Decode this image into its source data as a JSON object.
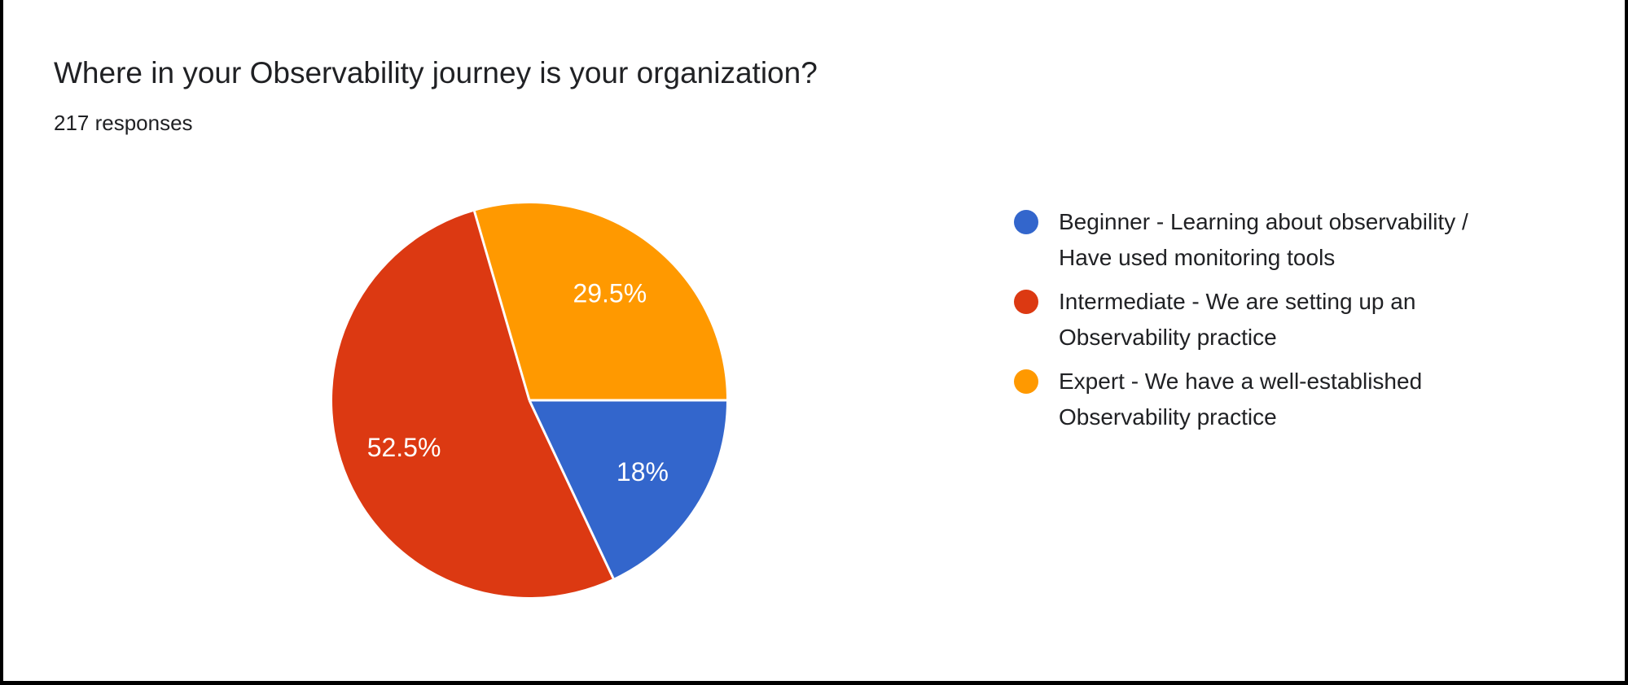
{
  "header": {
    "title": "Where in your Observability journey is your organization?",
    "responses": "217 responses"
  },
  "chart_data": {
    "type": "pie",
    "title": "Where in your Observability journey is your organization?",
    "subtitle": "217 responses",
    "total_responses": 217,
    "start_angle_deg": 90,
    "direction": "clockwise",
    "legend_position": "right",
    "slices": [
      {
        "label": "Beginner - Learning about observability / Have used monitoring tools",
        "label_lines": [
          "Beginner - Learning about observability /",
          "Have used monitoring tools"
        ],
        "pct": 18,
        "pct_label": "18%",
        "color": "#3366CC"
      },
      {
        "label": "Intermediate - We are setting up an Observability practice",
        "label_lines": [
          "Intermediate - We are setting up an",
          "Observability practice"
        ],
        "pct": 52.5,
        "pct_label": "52.5%",
        "color": "#DC3912"
      },
      {
        "label": "Expert - We have a well-established Observability practice",
        "label_lines": [
          "Expert - We have a well-established",
          "Observability practice"
        ],
        "pct": 29.5,
        "pct_label": "29.5%",
        "color": "#FF9900"
      }
    ],
    "slice_label_color": "#ffffff",
    "separator_color": "#ffffff",
    "text_color": "#202124"
  }
}
